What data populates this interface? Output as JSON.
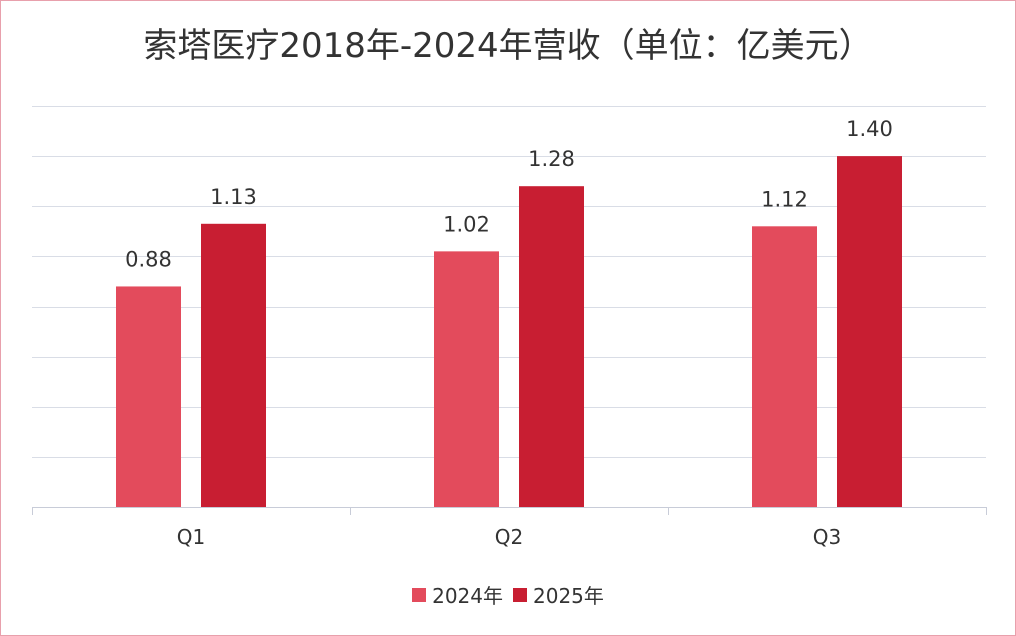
{
  "chart_data": {
    "type": "bar",
    "title": "索塔医疗2018年-2024年营收（单位：亿美元）",
    "categories": [
      "Q1",
      "Q2",
      "Q3"
    ],
    "series": [
      {
        "name": "2024年",
        "color": "#e34b5c",
        "values": [
          0.88,
          1.02,
          1.12
        ],
        "labels": [
          "0.88",
          "1.02",
          "1.12"
        ]
      },
      {
        "name": "2025年",
        "color": "#c81e32",
        "values": [
          1.13,
          1.28,
          1.4
        ],
        "labels": [
          "1.13",
          "1.28",
          "1.40"
        ]
      }
    ],
    "ylim": [
      0,
      1.6
    ],
    "gridlines": true,
    "data_labels": true,
    "legend": {
      "position": "bottom"
    }
  }
}
